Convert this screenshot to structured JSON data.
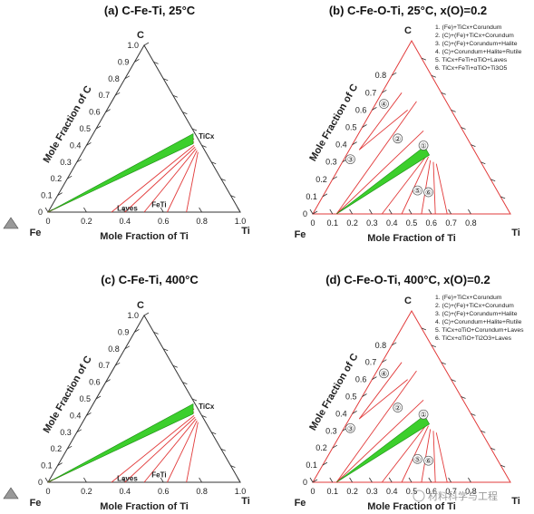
{
  "watermark": "材料科学与工程",
  "chart_data": [
    {
      "type": "ternary",
      "title": "(a) C-Fe-Ti, 25°C",
      "vertex_labels": {
        "top": "C",
        "left": "Fe",
        "right": "Ti"
      },
      "left_axis_label": "Mole Fraction of C",
      "bottom_axis_label": "Mole Fraction of Ti",
      "left_ticks": [
        "0",
        "0.1",
        "0.2",
        "0.3",
        "0.4",
        "0.5",
        "0.6",
        "0.7",
        "0.8",
        "0.9",
        "1.0"
      ],
      "bottom_ticks": [
        "0",
        "0.2",
        "0.4",
        "0.6",
        "0.8",
        "1.0"
      ],
      "phase_labels": [
        {
          "text": "TiCx",
          "x_Ti": 0.54,
          "x_C": 0.45
        },
        {
          "text": "Laves",
          "x_Ti": 0.33,
          "x_C": 0.02
        },
        {
          "text": "FeTi",
          "x_Ti": 0.5,
          "x_C": 0.04
        }
      ],
      "green_region": [
        [
          0.0,
          0.0
        ],
        [
          0.52,
          0.47
        ],
        [
          0.55,
          0.41
        ]
      ],
      "tie_lines": [
        [
          [
            0.0,
            0.0
          ],
          [
            0.55,
            0.42
          ]
        ],
        [
          [
            0.0,
            0.0
          ],
          [
            0.54,
            0.44
          ]
        ],
        [
          [
            0.33,
            0.0
          ],
          [
            0.56,
            0.4
          ]
        ],
        [
          [
            0.4,
            0.0
          ],
          [
            0.57,
            0.39
          ]
        ],
        [
          [
            0.5,
            0.0
          ],
          [
            0.58,
            0.38
          ]
        ],
        [
          [
            0.62,
            0.0
          ],
          [
            0.59,
            0.37
          ]
        ],
        [
          [
            0.72,
            0.0
          ],
          [
            0.6,
            0.36
          ]
        ]
      ]
    },
    {
      "type": "ternary",
      "title": "(b) C-Fe-O-Ti, 25°C, x(O)=0.2",
      "vertex_labels": {
        "top": "C",
        "left": "Fe",
        "right": "Ti"
      },
      "left_axis_label": "Mole Fraction of C",
      "bottom_axis_label": "Mole Fraction of Ti",
      "left_ticks": [
        "0",
        "0.1",
        "0.2",
        "0.3",
        "0.4",
        "0.5",
        "0.6",
        "0.7",
        "0.8"
      ],
      "bottom_ticks": [
        "0",
        "0.1",
        "0.2",
        "0.3",
        "0.4",
        "0.5",
        "0.6",
        "0.7",
        "0.8"
      ],
      "legend": [
        "1. (Fe)+TiCx+Corundum",
        "2. (C)+(Fe)+TiCx+Corundum",
        "3. (C)+(Fe)+Corundum+Halite",
        "4. (C)+Corundum+Halite+Rutile",
        "5. TiCx+FeTi+αTiO+Laves",
        "6. TiCx+FeTi+αTiO+Ti3O5"
      ],
      "region_labels": [
        {
          "text": "①",
          "x_Ti": 0.37,
          "x_C": 0.38
        },
        {
          "text": "②",
          "x_Ti": 0.22,
          "x_C": 0.42
        },
        {
          "text": "③",
          "x_Ti": 0.04,
          "x_C": 0.3
        },
        {
          "text": "④",
          "x_Ti": 0.05,
          "x_C": 0.62
        },
        {
          "text": "⑤",
          "x_Ti": 0.47,
          "x_C": 0.12
        },
        {
          "text": "⑥",
          "x_Ti": 0.53,
          "x_C": 0.11
        }
      ],
      "green_region": [
        [
          0.12,
          0.0
        ],
        [
          0.37,
          0.39
        ],
        [
          0.42,
          0.34
        ]
      ],
      "tie_lines": [
        [
          [
            0.05,
            0.37
          ],
          [
            0.1,
            0.7
          ]
        ],
        [
          [
            0.05,
            0.37
          ],
          [
            0.18,
            0.6
          ]
        ],
        [
          [
            0.12,
            0.0
          ],
          [
            0.2,
            0.65
          ]
        ],
        [
          [
            0.12,
            0.0
          ],
          [
            0.32,
            0.48
          ]
        ],
        [
          [
            0.35,
            0.0
          ],
          [
            0.41,
            0.35
          ]
        ],
        [
          [
            0.45,
            0.0
          ],
          [
            0.42,
            0.33
          ]
        ],
        [
          [
            0.55,
            0.0
          ],
          [
            0.44,
            0.31
          ]
        ],
        [
          [
            0.62,
            0.0
          ],
          [
            0.46,
            0.3
          ]
        ],
        [
          [
            0.68,
            0.0
          ],
          [
            0.48,
            0.29
          ]
        ]
      ]
    },
    {
      "type": "ternary",
      "title": "(c) C-Fe-Ti, 400°C",
      "vertex_labels": {
        "top": "C",
        "left": "Fe",
        "right": "Ti"
      },
      "left_axis_label": "Mole Fraction of C",
      "bottom_axis_label": "Mole Fraction of Ti",
      "left_ticks": [
        "0",
        "0.1",
        "0.2",
        "0.3",
        "0.4",
        "0.5",
        "0.6",
        "0.7",
        "0.8",
        "0.9",
        "1.0"
      ],
      "bottom_ticks": [
        "0",
        "0.2",
        "0.4",
        "0.6",
        "0.8",
        "1.0"
      ],
      "phase_labels": [
        {
          "text": "TiCx",
          "x_Ti": 0.54,
          "x_C": 0.45
        },
        {
          "text": "Laves",
          "x_Ti": 0.33,
          "x_C": 0.02
        },
        {
          "text": "FeTi",
          "x_Ti": 0.5,
          "x_C": 0.04
        }
      ],
      "green_region": [
        [
          0.0,
          0.0
        ],
        [
          0.52,
          0.47
        ],
        [
          0.55,
          0.41
        ]
      ],
      "tie_lines": [
        [
          [
            0.0,
            0.0
          ],
          [
            0.55,
            0.42
          ]
        ],
        [
          [
            0.0,
            0.0
          ],
          [
            0.54,
            0.44
          ]
        ],
        [
          [
            0.33,
            0.0
          ],
          [
            0.56,
            0.4
          ]
        ],
        [
          [
            0.4,
            0.0
          ],
          [
            0.57,
            0.39
          ]
        ],
        [
          [
            0.5,
            0.0
          ],
          [
            0.58,
            0.38
          ]
        ],
        [
          [
            0.62,
            0.0
          ],
          [
            0.59,
            0.37
          ]
        ],
        [
          [
            0.72,
            0.0
          ],
          [
            0.6,
            0.36
          ]
        ]
      ]
    },
    {
      "type": "ternary",
      "title": "(d) C-Fe-O-Ti, 400°C, x(O)=0.2",
      "vertex_labels": {
        "top": "C",
        "left": "Fe",
        "right": "Ti"
      },
      "left_axis_label": "Mole Fraction of C",
      "bottom_axis_label": "Mole Fraction of Ti",
      "left_ticks": [
        "0",
        "0.1",
        "0.2",
        "0.3",
        "0.4",
        "0.5",
        "0.6",
        "0.7",
        "0.8"
      ],
      "bottom_ticks": [
        "0",
        "0.1",
        "0.2",
        "0.3",
        "0.4",
        "0.5",
        "0.6",
        "0.7",
        "0.8"
      ],
      "legend": [
        "1. (Fe)+TiCx+Corundum",
        "2. (C)+(Fe)+TiCx+Corundum",
        "3. (C)+(Fe)+Corundum+Halite",
        "4. (C)+Corundum+Halite+Rutile",
        "5. TiCx+αTiO+Corundum+Laves",
        "6. TiCx+αTiO+Ti2O3+Laves"
      ],
      "region_labels": [
        {
          "text": "①",
          "x_Ti": 0.37,
          "x_C": 0.38
        },
        {
          "text": "②",
          "x_Ti": 0.22,
          "x_C": 0.42
        },
        {
          "text": "③",
          "x_Ti": 0.04,
          "x_C": 0.3
        },
        {
          "text": "④",
          "x_Ti": 0.05,
          "x_C": 0.62
        },
        {
          "text": "⑤",
          "x_Ti": 0.47,
          "x_C": 0.12
        },
        {
          "text": "⑥",
          "x_Ti": 0.53,
          "x_C": 0.11
        }
      ],
      "green_region": [
        [
          0.12,
          0.0
        ],
        [
          0.37,
          0.39
        ],
        [
          0.42,
          0.34
        ]
      ],
      "tie_lines": [
        [
          [
            0.05,
            0.37
          ],
          [
            0.1,
            0.7
          ]
        ],
        [
          [
            0.05,
            0.37
          ],
          [
            0.18,
            0.6
          ]
        ],
        [
          [
            0.12,
            0.0
          ],
          [
            0.2,
            0.65
          ]
        ],
        [
          [
            0.12,
            0.0
          ],
          [
            0.32,
            0.48
          ]
        ],
        [
          [
            0.35,
            0.0
          ],
          [
            0.41,
            0.35
          ]
        ],
        [
          [
            0.45,
            0.0
          ],
          [
            0.42,
            0.33
          ]
        ],
        [
          [
            0.55,
            0.0
          ],
          [
            0.44,
            0.31
          ]
        ],
        [
          [
            0.62,
            0.0
          ],
          [
            0.46,
            0.3
          ]
        ],
        [
          [
            0.68,
            0.0
          ],
          [
            0.48,
            0.29
          ]
        ]
      ]
    }
  ]
}
